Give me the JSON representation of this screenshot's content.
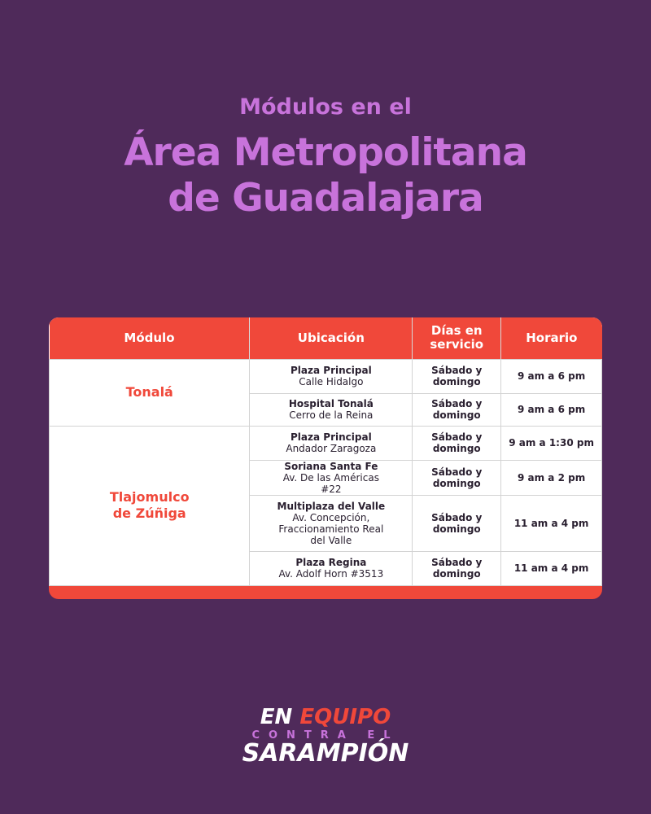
{
  "header": {
    "subtitle": "Módulos en el",
    "title_line1": "Área Metropolitana",
    "title_line2": "de Guadalajara"
  },
  "table": {
    "columns": [
      "Módulo",
      "Ubicación",
      "Días en servicio",
      "Horario"
    ],
    "groups": [
      {
        "module": "Tonalá",
        "rows": [
          {
            "place": "Plaza Principal",
            "address": "Calle Hidalgo",
            "days": "Sábado y domingo",
            "hours": "9 am a 6 pm"
          },
          {
            "place": "Hospital Tonalá",
            "address": "Cerro de la Reina",
            "days": "Sábado y domingo",
            "hours": "9 am a 6 pm"
          }
        ]
      },
      {
        "module": "Tlajomulco de Zúñiga",
        "rows": [
          {
            "place": "Plaza Principal",
            "address": "Andador Zaragoza",
            "days": "Sábado y domingo",
            "hours": "9 am a 1:30 pm"
          },
          {
            "place": "Soriana Santa Fe",
            "address": "Av. De las Américas #22",
            "days": "Sábado y domingo",
            "hours": "9 am a 2 pm"
          },
          {
            "place": "Multiplaza del Valle",
            "address": "Av. Concepción, Fraccionamiento Real del Valle",
            "days": "Sábado y domingo",
            "hours": "11 am a 4 pm"
          },
          {
            "place": "Plaza Regina",
            "address": "Av. Adolf Horn #3513",
            "days": "Sábado y domingo",
            "hours": "11 am a 4 pm"
          }
        ]
      }
    ]
  },
  "logo": {
    "en": "EN",
    "equipo": "EQUIPO",
    "contra": "CONTRA EL",
    "sarampion": "SARAMPIÓN"
  },
  "colors": {
    "background": "#4f2a5a",
    "accent": "#f0483a",
    "title": "#c873db"
  }
}
